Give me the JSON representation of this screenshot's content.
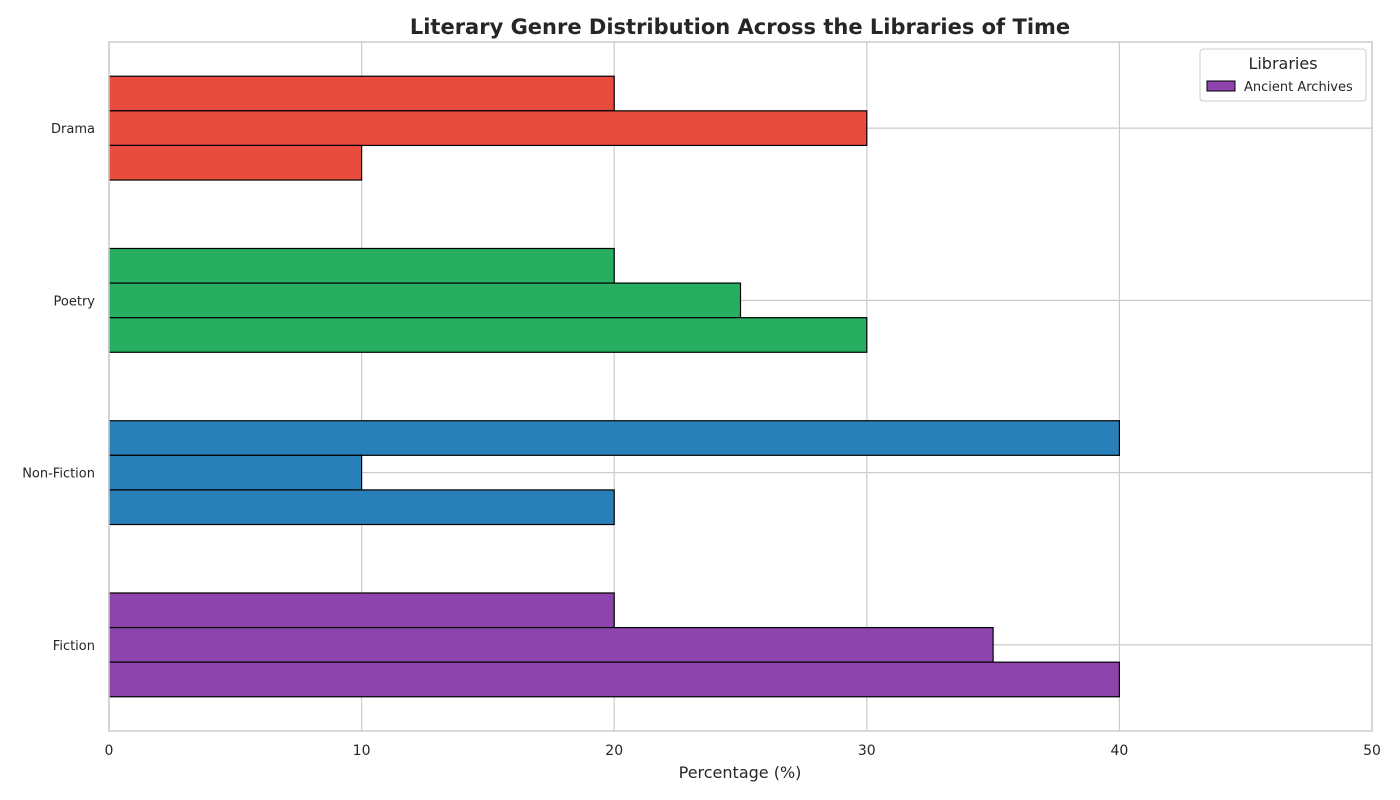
{
  "chart_data": {
    "type": "bar",
    "orientation": "horizontal",
    "title": "Literary Genre Distribution Across the Libraries of Time",
    "xlabel": "Percentage (%)",
    "ylabel": "",
    "xlim": [
      0,
      50
    ],
    "xticks": [
      "0",
      "10",
      "20",
      "30",
      "40",
      "50"
    ],
    "grid": true,
    "categories": [
      "Fiction",
      "Non-Fiction",
      "Poetry",
      "Drama"
    ],
    "category_colors": [
      "#8e44ad",
      "#2980b9",
      "#27ae60",
      "#e74c3c"
    ],
    "bar_edge_color": "#000000",
    "bars_per_category_top_to_bottom": [
      [
        20,
        35,
        40
      ],
      [
        40,
        10,
        20
      ],
      [
        20,
        25,
        30
      ],
      [
        20,
        30,
        10
      ]
    ],
    "legend": {
      "title": "Libraries",
      "placement": "top-right",
      "entries": [
        {
          "label": "Ancient Archives",
          "color": "#8e44ad"
        }
      ]
    }
  }
}
